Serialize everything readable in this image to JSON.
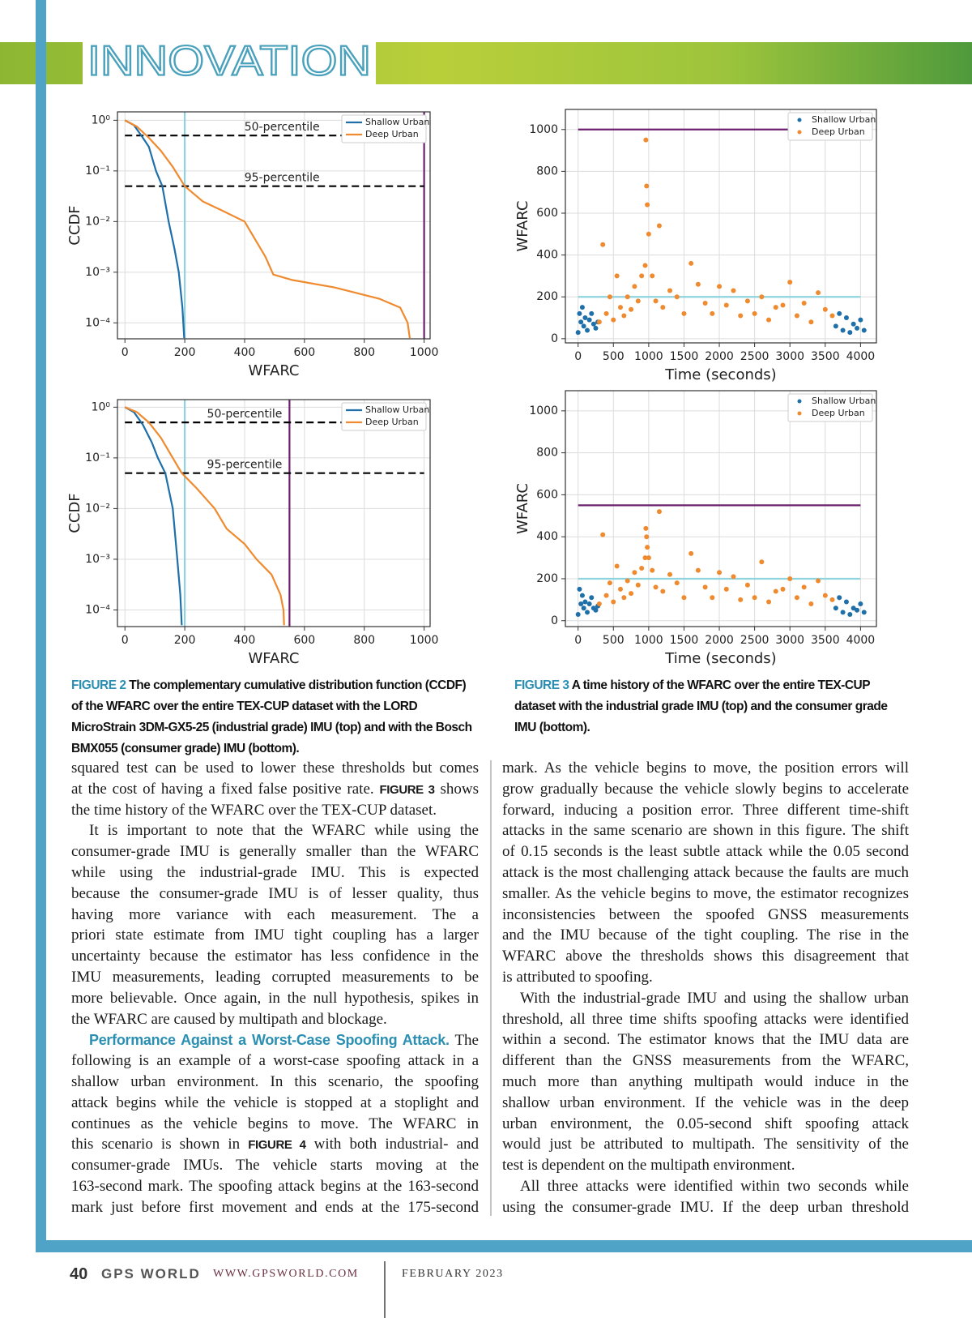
{
  "header": {
    "section": "INNOVATION"
  },
  "chart_data": [
    {
      "type": "line",
      "log_y": true,
      "xlabel": "WFARC",
      "ylabel": "CCDF",
      "xlim": [
        -25,
        1020
      ],
      "xticks": [
        0,
        200,
        400,
        600,
        800,
        1000
      ],
      "ylim": [
        4.84e-05,
        1.466
      ],
      "yticks": [
        {
          "value": 1,
          "label": "10⁰"
        },
        {
          "value": 0.1,
          "label": "10⁻¹"
        },
        {
          "value": 0.01,
          "label": "10⁻²"
        },
        {
          "value": 0.001,
          "label": "10⁻³"
        },
        {
          "value": 0.0001,
          "label": "10⁻⁴"
        }
      ],
      "grid": true,
      "legend": "upper right",
      "series": [
        {
          "name": "Shallow Urban",
          "color": "#1f6fa8",
          "x": [
            0,
            30,
            60,
            80,
            104,
            125,
            146,
            165,
            180,
            192,
            198
          ],
          "values": [
            1,
            0.8,
            0.45,
            0.3,
            0.1,
            0.05,
            0.01,
            0.003,
            0.001,
            0.0002,
            5e-05
          ]
        },
        {
          "name": "Deep Urban",
          "color": "#ef8a2f",
          "x": [
            0,
            40,
            80,
            120,
            160,
            200,
            260,
            320,
            400,
            430,
            470,
            496,
            560,
            700,
            850,
            920,
            945,
            952
          ],
          "values": [
            1,
            0.75,
            0.45,
            0.25,
            0.12,
            0.05,
            0.025,
            0.017,
            0.01,
            0.005,
            0.002,
            0.0009,
            0.0007,
            0.0005,
            0.0003,
            0.0002,
            0.0001,
            5e-05
          ]
        }
      ],
      "reference_lines": [
        {
          "axis": "x",
          "value": 200,
          "color": "#8fd3df"
        },
        {
          "axis": "x",
          "value": 1000,
          "color": "#6b1f6e"
        },
        {
          "axis": "y",
          "value": 0.5,
          "from": 0,
          "to": 1000,
          "color": "#000000",
          "style": "dashed",
          "label": "50-percentile",
          "label_x": 525
        },
        {
          "axis": "y",
          "value": 0.05,
          "from": 0,
          "to": 1000,
          "color": "#000000",
          "style": "dashed",
          "label": "95-percentile",
          "label_x": 525
        }
      ]
    },
    {
      "type": "line",
      "log_y": true,
      "xlabel": "WFARC",
      "ylabel": "CCDF",
      "xlim": [
        -25,
        1020
      ],
      "xticks": [
        0,
        200,
        400,
        600,
        800,
        1000
      ],
      "ylim": [
        4.7e-05,
        1.41
      ],
      "yticks": [
        {
          "value": 1,
          "label": "10⁰"
        },
        {
          "value": 0.1,
          "label": "10⁻¹"
        },
        {
          "value": 0.01,
          "label": "10⁻²"
        },
        {
          "value": 0.001,
          "label": "10⁻³"
        },
        {
          "value": 0.0001,
          "label": "10⁻⁴"
        }
      ],
      "grid": true,
      "legend": "upper right",
      "series": [
        {
          "name": "Shallow Urban",
          "color": "#1f6fa8",
          "x": [
            0,
            30,
            60,
            90,
            110,
            135,
            160,
            175,
            185,
            190
          ],
          "values": [
            1,
            0.8,
            0.45,
            0.2,
            0.1,
            0.05,
            0.01,
            0.001,
            0.0002,
            5e-05
          ]
        },
        {
          "name": "Deep Urban",
          "color": "#ef8a2f",
          "x": [
            0,
            40,
            80,
            120,
            160,
            190,
            240,
            300,
            340,
            400,
            440,
            490,
            520,
            530,
            532
          ],
          "values": [
            1,
            0.8,
            0.5,
            0.25,
            0.1,
            0.05,
            0.025,
            0.01,
            0.004,
            0.002,
            0.001,
            0.0005,
            0.0002,
            0.0001,
            5e-05
          ]
        }
      ],
      "reference_lines": [
        {
          "axis": "x",
          "value": 200,
          "color": "#8fd3df"
        },
        {
          "axis": "x",
          "value": 550,
          "color": "#6b1f6e"
        },
        {
          "axis": "y",
          "value": 0.5,
          "from": 0,
          "to": 1000,
          "color": "#000000",
          "style": "dashed",
          "label": "50-percentile",
          "label_x": 400
        },
        {
          "axis": "y",
          "value": 0.05,
          "from": 0,
          "to": 1000,
          "color": "#000000",
          "style": "dashed",
          "label": "95-percentile",
          "label_x": 400
        }
      ]
    },
    {
      "type": "scatter",
      "xlabel": "Time (seconds)",
      "ylabel": "WFARC",
      "xlim": [
        -180,
        4225
      ],
      "xticks": [
        0,
        500,
        1000,
        1500,
        2000,
        2500,
        3000,
        3500,
        4000
      ],
      "ylim": [
        -20,
        1096
      ],
      "yticks": [
        0,
        200,
        400,
        600,
        800,
        1000
      ],
      "grid": true,
      "legend": "upper right",
      "series": [
        {
          "name": "Shallow Urban",
          "color": "#1f6fa8",
          "x": [
            0,
            20,
            40,
            60,
            80,
            100,
            130,
            160,
            190,
            220,
            250,
            280,
            3650,
            3700,
            3750,
            3800,
            3850,
            3900,
            3950,
            4000,
            4050
          ],
          "values": [
            30,
            120,
            80,
            150,
            60,
            100,
            40,
            90,
            120,
            70,
            50,
            80,
            60,
            120,
            40,
            100,
            30,
            70,
            50,
            90,
            40
          ]
        },
        {
          "name": "Deep Urban",
          "color": "#ef8a2f",
          "x": [
            300,
            350,
            400,
            450,
            500,
            550,
            600,
            650,
            700,
            750,
            800,
            850,
            900,
            950,
            960,
            970,
            980,
            1000,
            1050,
            1100,
            1150,
            1200,
            1300,
            1400,
            1500,
            1600,
            1700,
            1800,
            1900,
            2000,
            2100,
            2200,
            2300,
            2400,
            2500,
            2600,
            2700,
            2800,
            2900,
            3000,
            3100,
            3200,
            3300,
            3400,
            3500,
            3600
          ],
          "values": [
            80,
            450,
            120,
            200,
            90,
            300,
            150,
            110,
            200,
            140,
            250,
            180,
            300,
            350,
            950,
            730,
            640,
            500,
            300,
            180,
            540,
            150,
            230,
            200,
            120,
            360,
            260,
            170,
            120,
            250,
            160,
            230,
            110,
            180,
            120,
            200,
            90,
            150,
            160,
            270,
            110,
            170,
            80,
            220,
            140,
            110
          ]
        }
      ],
      "reference_lines": [
        {
          "axis": "y",
          "value": 1000,
          "from": 0,
          "to": 4000,
          "color": "#6b1f6e"
        },
        {
          "axis": "y",
          "value": 200,
          "from": 0,
          "to": 4000,
          "color": "#8fd3df"
        }
      ]
    },
    {
      "type": "scatter",
      "xlabel": "Time (seconds)",
      "ylabel": "WFARC",
      "xlim": [
        -180,
        4225
      ],
      "xticks": [
        0,
        500,
        1000,
        1500,
        2000,
        2500,
        3000,
        3500,
        4000
      ],
      "ylim": [
        -28,
        1096
      ],
      "yticks": [
        0,
        200,
        400,
        600,
        800,
        1000
      ],
      "grid": true,
      "legend": "upper right",
      "series": [
        {
          "name": "Shallow Urban",
          "color": "#1f6fa8",
          "x": [
            0,
            20,
            40,
            60,
            80,
            100,
            130,
            160,
            190,
            220,
            250,
            280,
            3650,
            3700,
            3750,
            3800,
            3850,
            3900,
            3950,
            4000,
            4050
          ],
          "values": [
            30,
            150,
            80,
            120,
            60,
            90,
            40,
            80,
            110,
            60,
            50,
            70,
            60,
            110,
            40,
            90,
            30,
            60,
            50,
            80,
            40
          ]
        },
        {
          "name": "Deep Urban",
          "color": "#ef8a2f",
          "x": [
            300,
            350,
            400,
            450,
            500,
            550,
            600,
            650,
            700,
            750,
            800,
            850,
            900,
            950,
            960,
            970,
            980,
            1000,
            1050,
            1100,
            1150,
            1200,
            1300,
            1400,
            1500,
            1600,
            1700,
            1800,
            1900,
            2000,
            2100,
            2200,
            2300,
            2400,
            2500,
            2600,
            2700,
            2800,
            2900,
            3000,
            3100,
            3200,
            3300,
            3400,
            3500,
            3600
          ],
          "values": [
            80,
            410,
            120,
            180,
            90,
            260,
            150,
            110,
            190,
            130,
            230,
            170,
            250,
            300,
            440,
            400,
            350,
            300,
            240,
            160,
            520,
            140,
            220,
            180,
            110,
            320,
            240,
            160,
            110,
            230,
            150,
            210,
            100,
            170,
            110,
            280,
            90,
            140,
            150,
            200,
            110,
            160,
            80,
            190,
            120,
            100
          ]
        }
      ],
      "reference_lines": [
        {
          "axis": "y",
          "value": 550,
          "from": 0,
          "to": 4000,
          "color": "#6b1f6e"
        },
        {
          "axis": "y",
          "value": 200,
          "from": 0,
          "to": 4000,
          "color": "#8fd3df"
        }
      ]
    }
  ],
  "captions": [
    {
      "label": "FIGURE 2",
      "text": " The complementary cumulative distribution function (CCDF) of the WFARC over the entire TEX-CUP dataset with the LORD MicroStrain 3DM-GX5-25 (industrial grade) IMU (top) and with the Bosch BMX055 (consumer grade) IMU (bottom)."
    },
    {
      "label": "FIGURE 3",
      "text": " A time history of the WFARC over the entire TEX-CUP dataset with the industrial grade IMU (top) and the consumer grade IMU (bottom)."
    }
  ],
  "body": {
    "columns": [
      [
        [
          "squared test can be used to lower these thresholds but comes",
          [
            "at the cost of having a fixed false positive rate. ",
            {
              "bold": "FIGURE 3"
            },
            " shows"
          ],
          "the time history of the WFARC over the TEX-CUP dataset."
        ],
        [
          "It is important to note that the WFARC while using the",
          "consumer-grade IMU is generally smaller than the WFARC",
          "while using the industrial-grade IMU. This is expected",
          "because the consumer-grade IMU is of lesser quality, thus",
          "having more variance with each measurement. The a",
          "priori state estimate from IMU tight coupling has a larger",
          "uncertainty because the estimator has less confidence in the",
          "IMU measurements, leading corrupted measurements to be",
          "more believable. Once again, in the null hypothesis, spikes in",
          "the WFARC are caused by multipath and blockage."
        ],
        [
          [
            {
              "head": "Performance Against a Worst-Case Spoofing Attack."
            },
            " The"
          ],
          "following is an example of a worst-case spoofing attack in a",
          "shallow urban environment. In this scenario, the spoofing",
          "attack begins while the vehicle is stopped at a stoplight and",
          "continues as the vehicle begins to move. The WFARC in",
          [
            "this scenario is shown in ",
            {
              "bold": "FIGURE 4"
            },
            " with both industrial- and"
          ],
          "consumer-grade IMUs. The vehicle starts moving at the",
          "163-second mark. The spoofing attack begins at the 163-second",
          "mark just before first movement and ends at the 175-second"
        ]
      ],
      [
        [
          "mark. As the vehicle begins to move, the position errors will",
          "grow gradually because the vehicle slowly begins to accelerate",
          "forward, inducing a position error. Three different time-shift",
          "attacks in the same scenario are shown in this figure. The shift",
          "of 0.15 seconds is the least subtle attack while the 0.05 second",
          "attack is the most challenging attack because the faults are much",
          "smaller. As the vehicle begins to move, the estimator recognizes",
          "inconsistencies between the spoofed GNSS measurements",
          "and the IMU because of the tight coupling. The rise in the",
          "WFARC above the thresholds shows this disagreement that",
          "is attributed to spoofing."
        ],
        [
          "With the industrial-grade IMU and using the shallow urban",
          "threshold, all three time shifts spoofing attacks were identified",
          "within a second. The estimator knows that the IMU data are",
          "different than the GNSS measurements from the WFARC,",
          "much more than anything multipath would induce in the",
          "shallow urban environment. If the vehicle was in the deep",
          "urban environment, the 0.05-second shift spoofing attack",
          "would just be attributed to multipath. The sensitivity of the",
          "test is dependent on the multipath environment."
        ],
        [
          "All three attacks were identified within two seconds while",
          "using the consumer-grade IMU. If the deep urban threshold"
        ]
      ]
    ]
  },
  "footer": {
    "page": "40",
    "magazine": "GPS WORLD",
    "url": "WWW.GPSWORLD.COM",
    "date": "FEBRUARY 2023"
  }
}
